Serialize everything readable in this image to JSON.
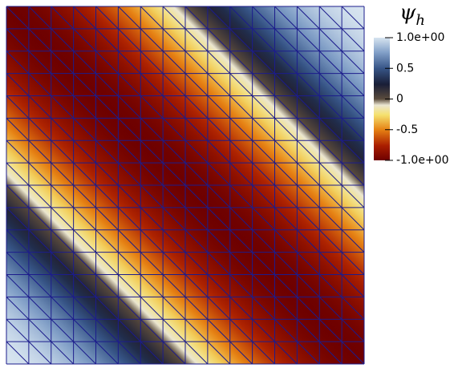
{
  "colorbar": {
    "title": {
      "symbol": "ψ",
      "subscript": "h"
    },
    "ticks": [
      {
        "value": 1,
        "label": "1.0e+00"
      },
      {
        "value": 0.5,
        "label": "0.5"
      },
      {
        "value": 0,
        "label": "0"
      },
      {
        "value": -0.5,
        "label": "-0.5"
      },
      {
        "value": -1,
        "label": "-1.0e+00"
      }
    ]
  }
}
